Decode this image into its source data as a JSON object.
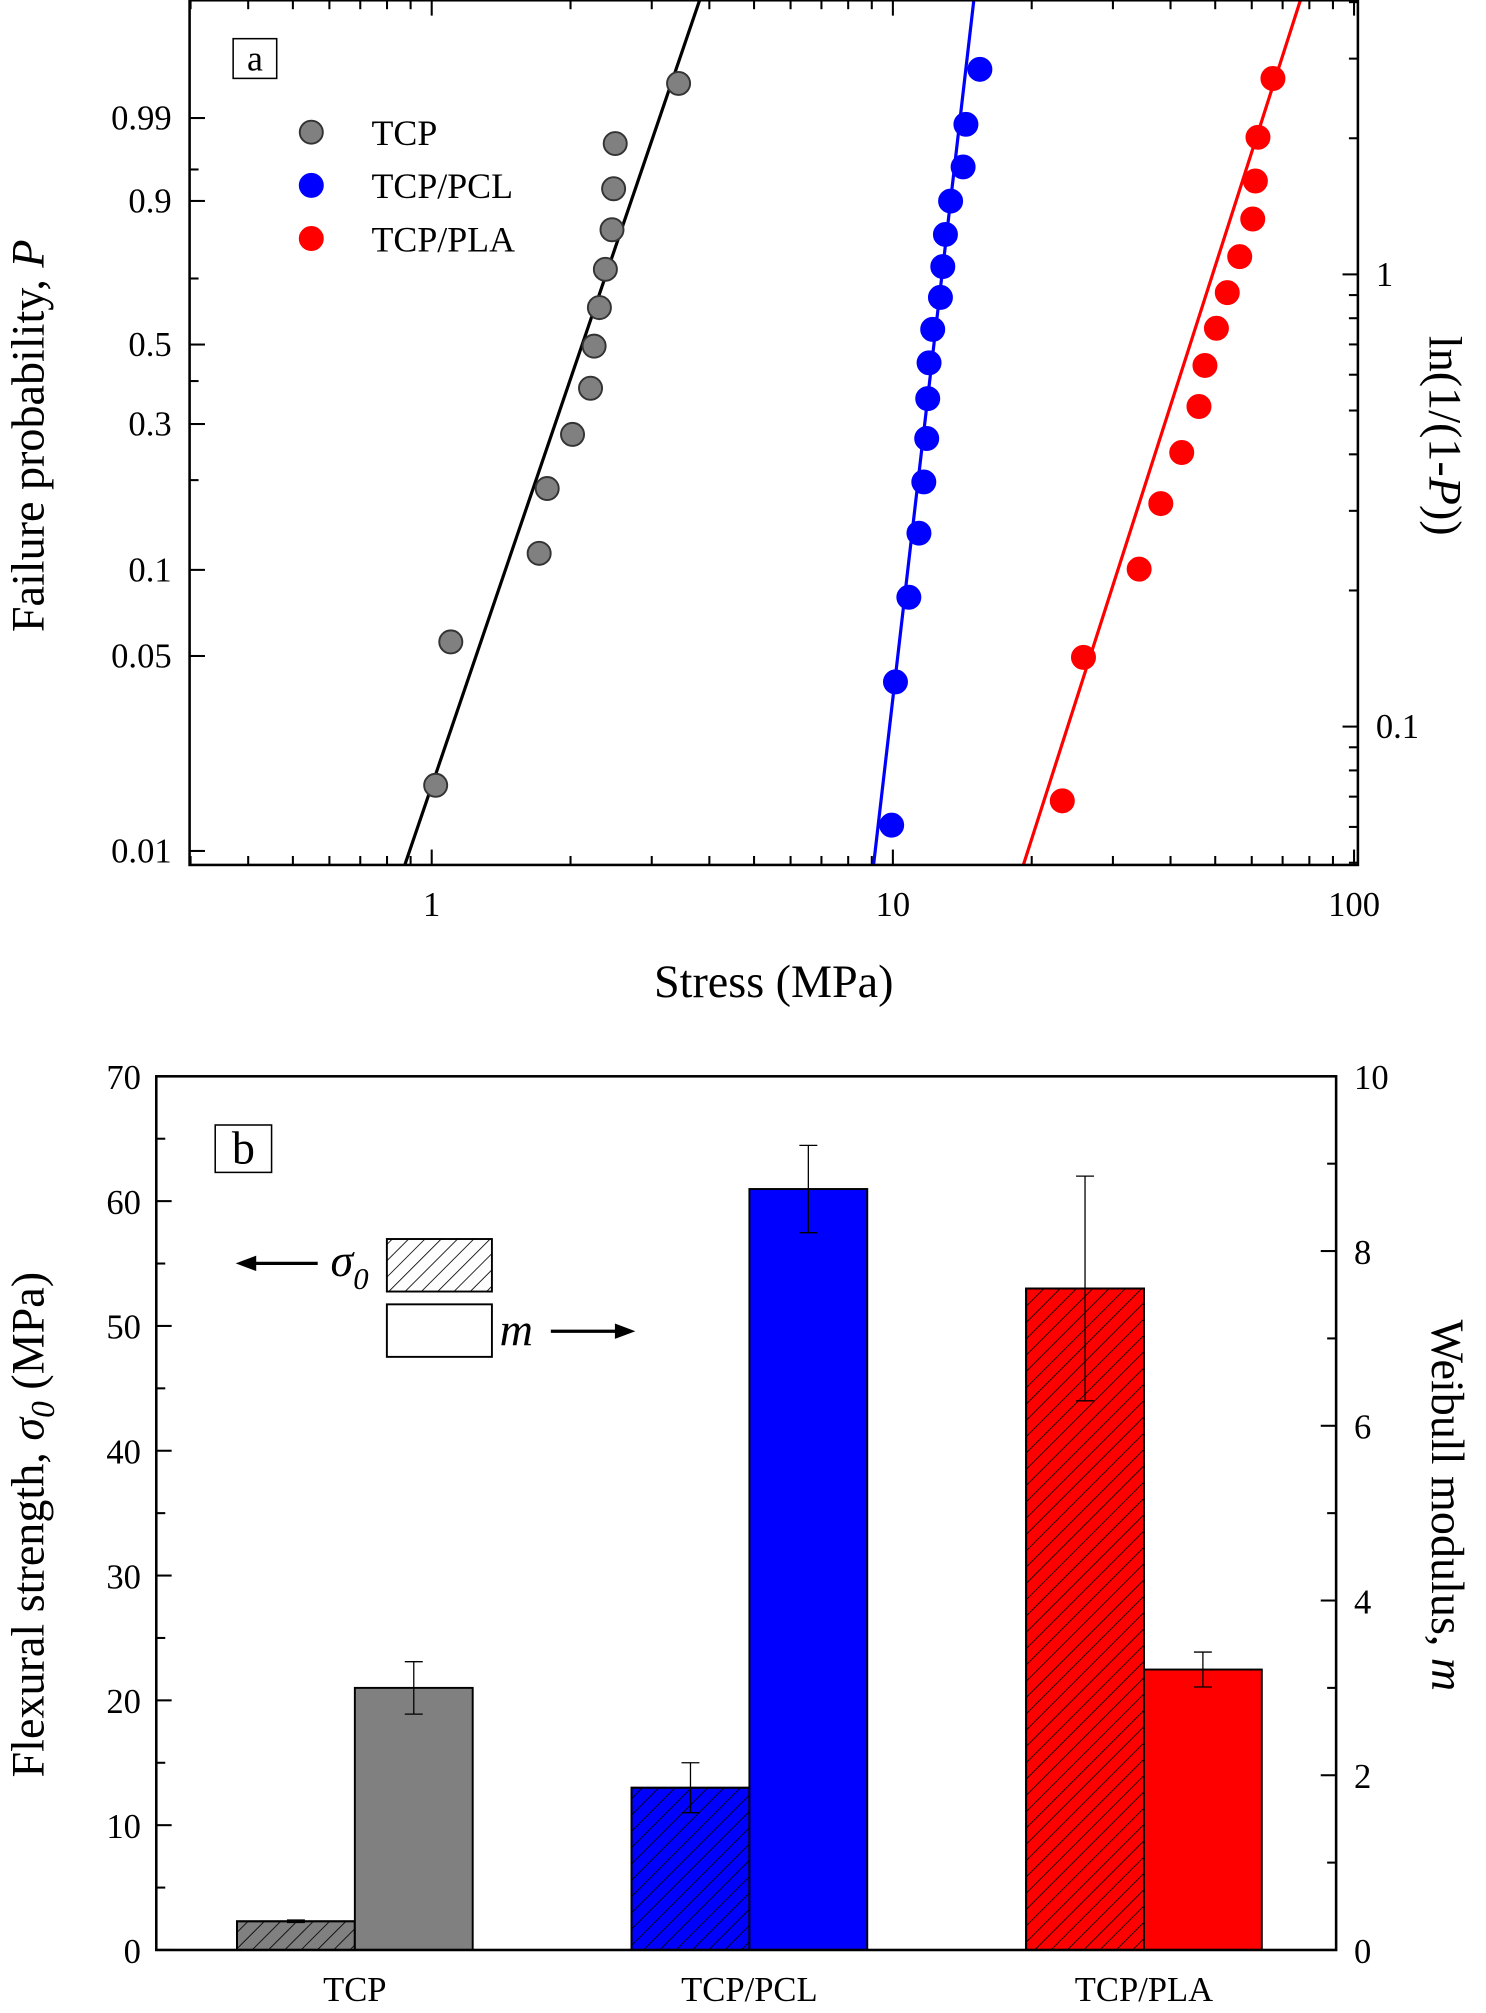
{
  "chart_data": [
    {
      "type": "scatter",
      "panel_label": "a",
      "xlabel": "Stress (MPa)",
      "ylabel": "Failure probability, ",
      "ylabel_italic": "P",
      "y2label_prefix": "ln(1/(1-",
      "y2label_italic": "P",
      "y2label_suffix": "))",
      "xscale": "log",
      "xlim": [
        0.3,
        100
      ],
      "x_ticks": [
        {
          "v": 1,
          "label": "1"
        },
        {
          "v": 10,
          "label": "10"
        },
        {
          "v": 100,
          "label": "100"
        }
      ],
      "y_ticks_P": [
        {
          "v": 0.99,
          "label": "0.99"
        },
        {
          "v": 0.9,
          "label": "0.9"
        },
        {
          "v": 0.5,
          "label": "0.5"
        },
        {
          "v": 0.3,
          "label": "0.3"
        },
        {
          "v": 0.1,
          "label": "0.1"
        },
        {
          "v": 0.05,
          "label": "0.05"
        },
        {
          "v": 0.01,
          "label": "0.01"
        }
      ],
      "y_minor_ticks_P": [
        0.95,
        0.7,
        0.4,
        0.2
      ],
      "y2_ticks": [
        {
          "v": 1,
          "label": "1"
        },
        {
          "v": 0.1,
          "label": "0.1"
        }
      ],
      "y2lim": [
        0.0494,
        4.04
      ],
      "legend_position": "top-left",
      "series": [
        {
          "name": "TCP",
          "color": "#808080",
          "edge": "#333333",
          "stress": [
            1.02,
            1.1,
            1.71,
            1.78,
            2.02,
            2.21,
            2.25,
            2.31,
            2.38,
            2.46,
            2.48,
            2.5,
            3.43
          ],
          "ln_1_over_1mP": [
            0.0174,
            0.0577,
            0.121,
            0.208,
            0.327,
            0.481,
            0.684,
            0.944,
            1.3,
            1.81,
            2.55,
            3.72,
            6.15
          ],
          "fit_line": [
            [
              0.874,
              0.00893
            ],
            [
              3.81,
              12.33
            ]
          ],
          "line_color": "#000000"
        },
        {
          "name": "TCP/PCL",
          "color": "#0000ff",
          "edge": "#0000ff",
          "stress": [
            9.94,
            10.13,
            10.83,
            11.39,
            11.67,
            11.84,
            11.9,
            11.98,
            12.2,
            12.68,
            12.83,
            13.0,
            13.34,
            14.2,
            14.4,
            15.44
          ],
          "ln_1_over_1mP": [
            0.01247,
            0.0413,
            0.0838,
            0.1432,
            0.2198,
            0.316,
            0.441,
            0.595,
            0.787,
            1.028,
            1.33,
            1.74,
            2.3,
            3.06,
            4.37,
            6.92
          ],
          "fit_line": [
            [
              9.08,
              0.00893
            ],
            [
              14.98,
              12.33
            ]
          ],
          "line_color": "#0000ff"
        },
        {
          "name": "TCP/PLA",
          "color": "#ff0000",
          "edge": "#ff0000",
          "stress": [
            23.3,
            25.9,
            34.2,
            38.1,
            42.3,
            46.1,
            47.5,
            50.3,
            53.1,
            56.5,
            60.3,
            61.1,
            61.9,
            66.7
          ],
          "ln_1_over_1mP": [
            0.01528,
            0.0507,
            0.106,
            0.1834,
            0.281,
            0.413,
            0.582,
            0.794,
            1.07,
            1.445,
            1.98,
            2.72,
            3.92,
            6.41
          ],
          "fit_line": [
            [
              19.18,
              0.00893
            ],
            [
              76.5,
              12.33
            ]
          ],
          "line_color": "#ff0000"
        }
      ]
    },
    {
      "type": "bar",
      "panel_label": "b",
      "categories": [
        "TCP",
        "TCP/PCL",
        "TCP/PLA"
      ],
      "colors": [
        "#808080",
        "#0000ff",
        "#ff0000"
      ],
      "ylabel_prefix": "Flexural strength, ",
      "ylabel_sym": "σ",
      "ylabel_sub": "0",
      "ylabel_suffix": " (MPa)",
      "y2label_prefix": "Weibull modulus, ",
      "y2label_italic": "m",
      "ylim": [
        0,
        70
      ],
      "y2lim": [
        0,
        10
      ],
      "y_ticks": [
        "0",
        "10",
        "20",
        "30",
        "40",
        "50",
        "60",
        "70"
      ],
      "y2_ticks": [
        "0",
        "2",
        "4",
        "6",
        "8",
        "10"
      ],
      "legend": {
        "sigma_sym": "σ",
        "sigma_sub": "0",
        "m_label": "m"
      },
      "series": [
        {
          "name": "σ0 (MPa, left axis, hatched)",
          "values": [
            2.3,
            13.0,
            53.0
          ],
          "errors": [
            0.1,
            2.0,
            9.0
          ]
        },
        {
          "name": "m (right axis, solid)",
          "values": [
            3.0,
            8.71,
            3.21
          ],
          "errors": [
            0.3,
            0.5,
            0.2
          ]
        }
      ]
    }
  ]
}
